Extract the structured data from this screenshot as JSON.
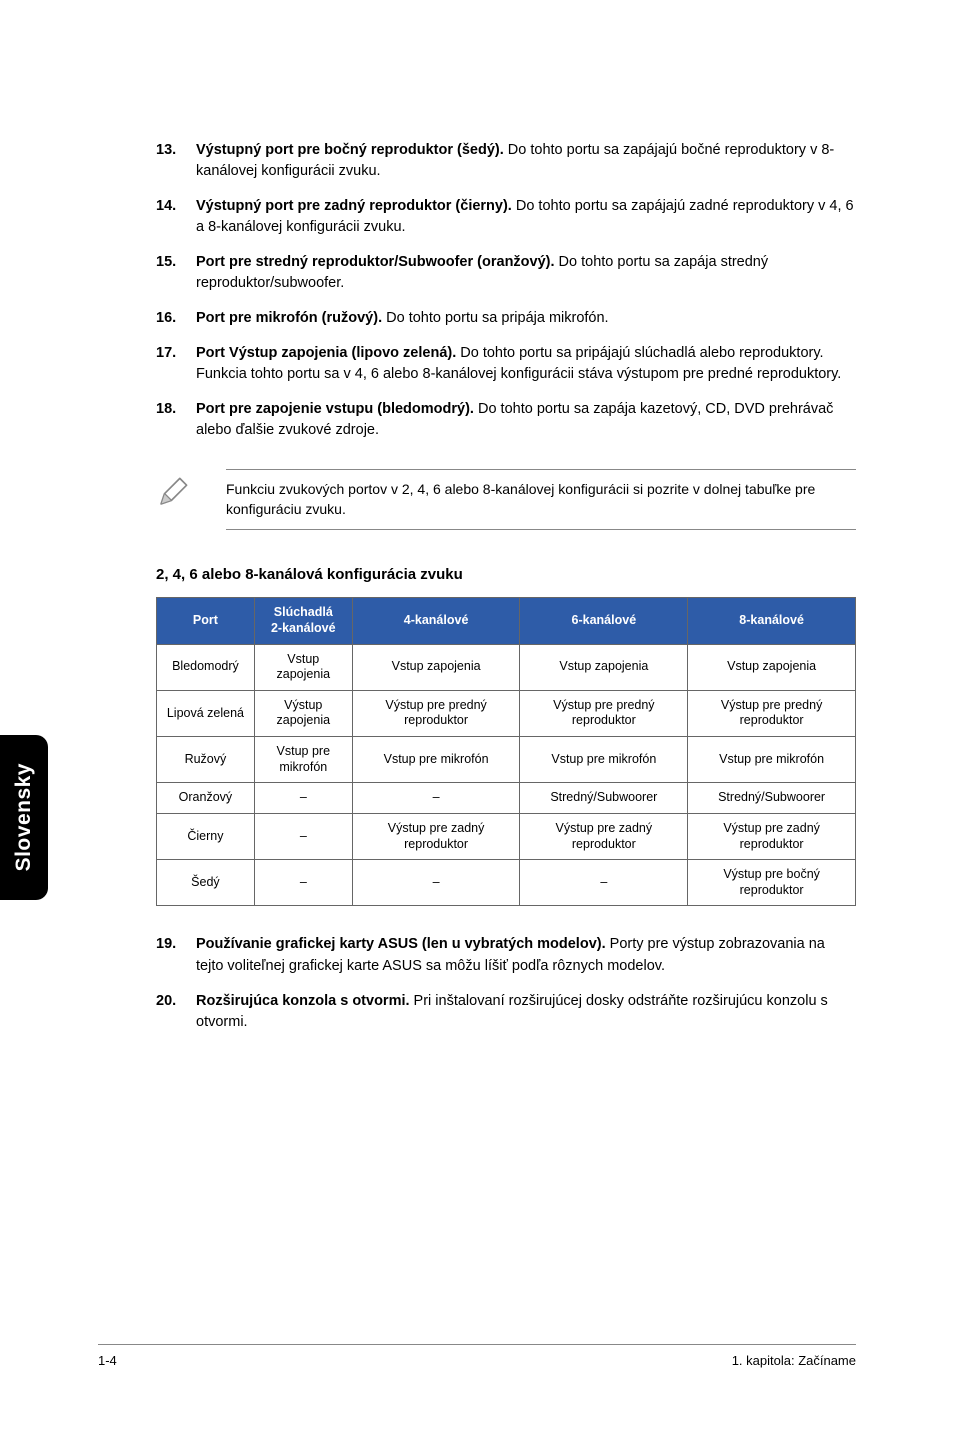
{
  "items": [
    {
      "num": "13.",
      "lead": "Výstupný port pre bočný reproduktor (šedý).",
      "rest": " Do tohto portu sa zapájajú bočné reproduktory v 8-kanálovej konfigurácii zvuku."
    },
    {
      "num": "14.",
      "lead": "Výstupný port pre zadný reproduktor (čierny).",
      "rest": " Do tohto portu sa zapájajú zadné reproduktory v 4, 6 a 8-kanálovej konfigurácii zvuku."
    },
    {
      "num": "15.",
      "lead": "Port pre stredný reproduktor/Subwoofer (oranžový).",
      "rest": " Do tohto portu sa zapája stredný reproduktor/subwoofer."
    },
    {
      "num": "16.",
      "lead": "Port pre mikrofón (ružový).",
      "rest": " Do tohto portu sa pripája mikrofón."
    },
    {
      "num": "17.",
      "lead": "Port Výstup zapojenia (lipovo zelená).",
      "rest": " Do tohto portu sa pripájajú slúchadlá alebo reproduktory. Funkcia tohto portu sa v 4, 6 alebo 8-kanálovej konfigurácii stáva výstupom pre predné reproduktory."
    },
    {
      "num": "18.",
      "lead": "Port pre zapojenie vstupu (bledomodrý).",
      "rest": " Do tohto portu sa zapája kazetový, CD, DVD prehrávač alebo ďalšie zvukové zdroje."
    }
  ],
  "note": "Funkciu zvukových portov v 2, 4, 6 alebo 8-kanálovej konfigurácii si pozrite v dolnej tabuľke pre konfiguráciu zvuku.",
  "table_title": "2, 4, 6 alebo 8-kanálová konfigurácia zvuku",
  "table": {
    "headers": [
      "Port",
      "Slúchadlá 2-kanálové",
      "4-kanálové",
      "6-kanálové",
      "8-kanálové"
    ],
    "col_widths": [
      "14%",
      "14%",
      "24%",
      "24%",
      "24%"
    ],
    "rows": [
      [
        "Bledomodrý",
        "Vstup zapojenia",
        "Vstup zapojenia",
        "Vstup zapojenia",
        "Vstup zapojenia"
      ],
      [
        "Lipová zelená",
        "Výstup zapojenia",
        "Výstup pre predný reproduktor",
        "Výstup pre predný reproduktor",
        "Výstup pre predný reproduktor"
      ],
      [
        "Ružový",
        "Vstup pre mikrofón",
        "Vstup pre mikrofón",
        "Vstup pre mikrofón",
        "Vstup pre mikrofón"
      ],
      [
        "Oranžový",
        "–",
        "–",
        "Stredný/Subwoorer",
        "Stredný/Subwoorer"
      ],
      [
        "Čierny",
        "–",
        "Výstup pre zadný reproduktor",
        "Výstup pre zadný reproduktor",
        "Výstup pre zadný reproduktor"
      ],
      [
        "Šedý",
        "–",
        "–",
        "–",
        "Výstup pre bočný reproduktor"
      ]
    ]
  },
  "post_items": [
    {
      "num": "19.",
      "lead": "Používanie grafickej karty ASUS (len u vybratých modelov).",
      "rest": " Porty pre výstup zobrazovania na tejto voliteľnej grafickej karte ASUS sa môžu líšiť podľa rôznych modelov."
    },
    {
      "num": "20.",
      "lead": "Rozširujúca konzola s otvormi.",
      "rest": " Pri inštalovaní rozširujúcej dosky odstráňte rozširujúcu konzolu s otvormi."
    }
  ],
  "side_tab": "Slovensky",
  "footer_left": "1-4",
  "footer_right": "1. kapitola: Začíname"
}
